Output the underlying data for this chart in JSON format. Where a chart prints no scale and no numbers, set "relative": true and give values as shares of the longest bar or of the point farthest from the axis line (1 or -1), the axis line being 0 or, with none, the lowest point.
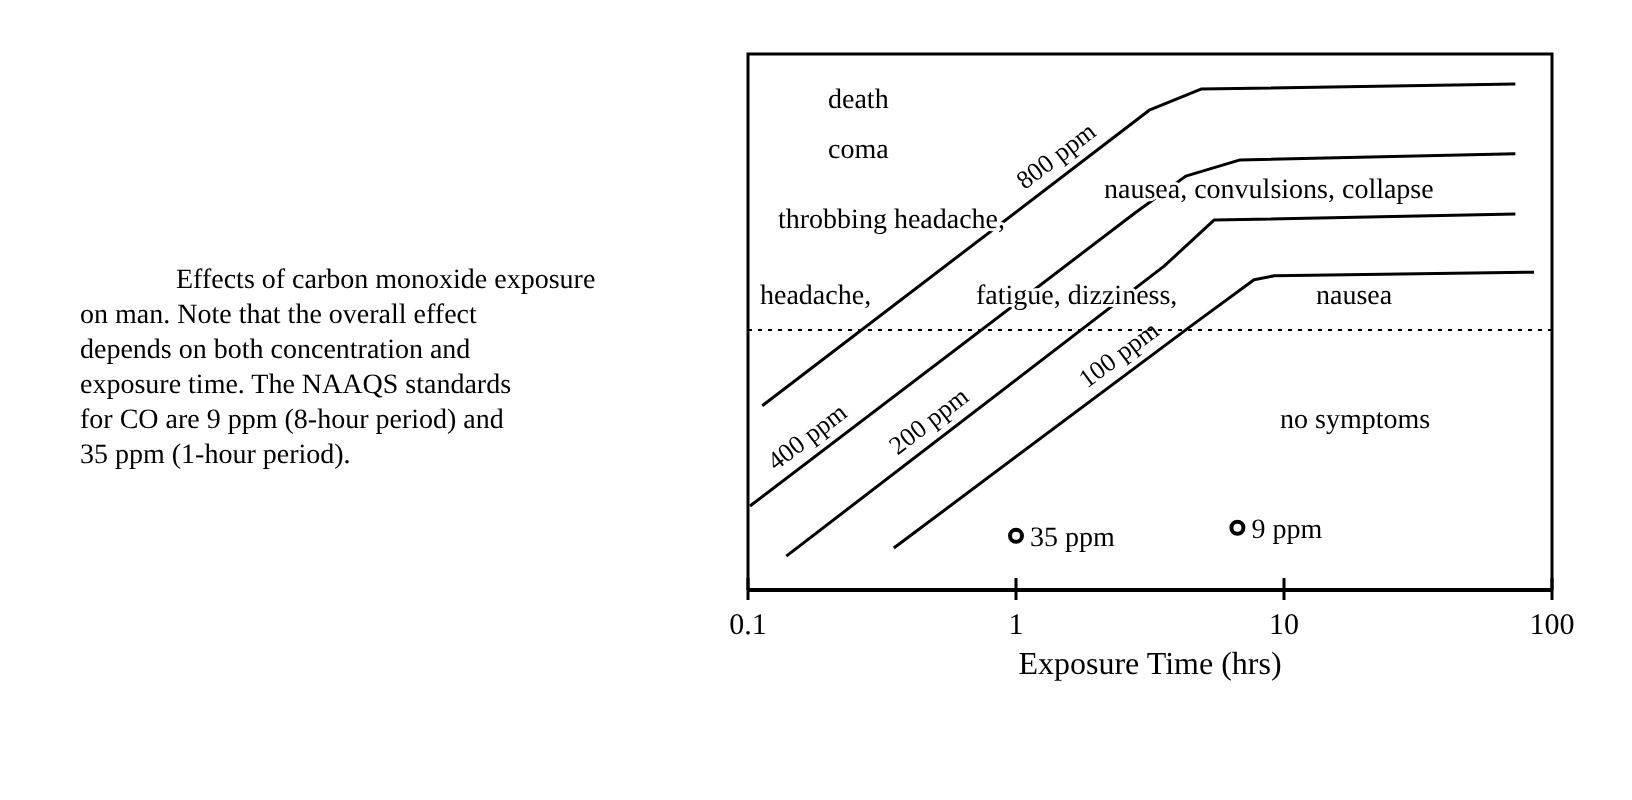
{
  "chart_data": {
    "type": "line",
    "relative": true,
    "xlabel": "Exposure Time (hrs)",
    "log": "x",
    "xlim": [
      0.1,
      100
    ],
    "xticks": [
      0.1,
      1,
      10,
      100
    ],
    "line_style": "solid",
    "marker": "none",
    "series": [
      {
        "name": "800 ppm",
        "color": "#000000",
        "x": [
          0.113,
          3.16,
          4.9,
          73
        ],
        "values": [
          0.364,
          0.949,
          0.99,
          1
        ]
      },
      {
        "name": "400 ppm",
        "color": "#000000",
        "x": [
          0.1017,
          2.81,
          4.3,
          6.86,
          73
        ],
        "values": [
          0.166,
          0.747,
          0.818,
          0.85,
          0.862
        ]
      },
      {
        "name": "200 ppm",
        "color": "#000000",
        "x": [
          0.139,
          3.57,
          5.48,
          73
        ],
        "values": [
          0.067,
          0.64,
          0.731,
          0.743
        ]
      },
      {
        "name": "100 ppm",
        "color": "#000000",
        "x": [
          0.35,
          4.61,
          7.73,
          9.2,
          85.7
        ],
        "values": [
          0.083,
          0.526,
          0.613,
          0.621,
          0.628
        ]
      },
      {
        "name": "35 ppm",
        "type": "scatter",
        "marker": "circle",
        "color": "#000000",
        "x": [
          1
        ],
        "values": [
          0.107
        ]
      },
      {
        "name": "9 ppm",
        "type": "scatter",
        "marker": "circle",
        "color": "#000000",
        "x": [
          6.7
        ],
        "values": [
          0.123
        ]
      }
    ],
    "ref_lines": [
      {
        "axis": "y",
        "value": 0.514,
        "line_style": "dotted",
        "color": "#000000"
      }
    ],
    "annotations": [
      "Effects of carbon monoxide exposure on man.  Note that the overall effect depends on both concentration and exposure time. The NAAQS standards for CO are 9 ppm (8-hour period) and 35 ppm (1-hour period).",
      "death",
      "coma",
      "throbbing headache,",
      "headache,",
      "fatigue, dizziness,",
      "nausea, convulsions, collapse",
      "nausea",
      "no symptoms"
    ]
  }
}
